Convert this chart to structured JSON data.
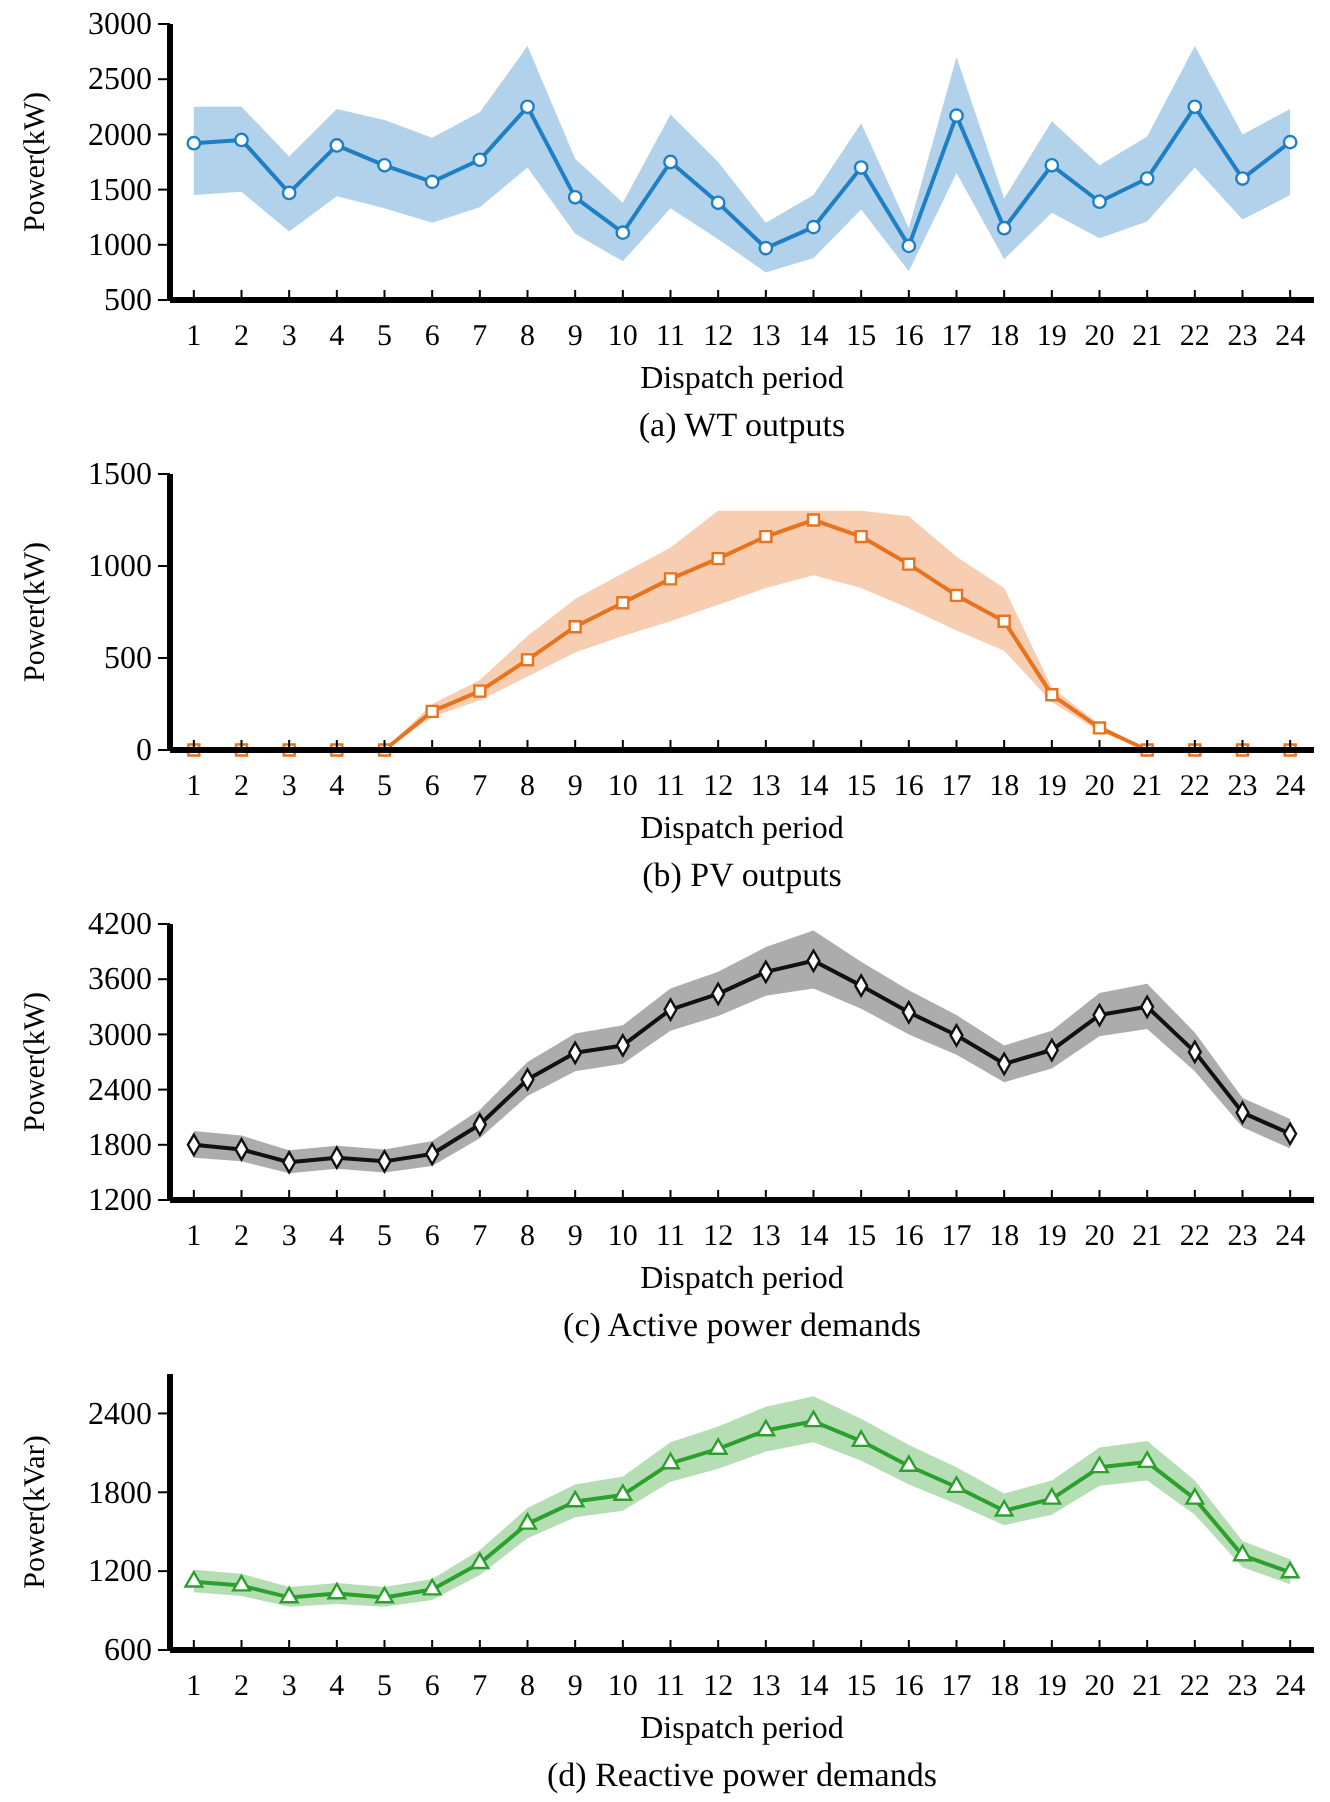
{
  "chart_data": [
    {
      "type": "line",
      "title": "(a) WT outputs",
      "xlabel": "Dispatch period",
      "ylabel": "Power(kW)",
      "x": [
        1,
        2,
        3,
        4,
        5,
        6,
        7,
        8,
        9,
        10,
        11,
        12,
        13,
        14,
        15,
        16,
        17,
        18,
        19,
        20,
        21,
        22,
        23,
        24
      ],
      "xlim": [
        0.5,
        24.5
      ],
      "xticks": [
        1,
        2,
        3,
        4,
        5,
        6,
        7,
        8,
        9,
        10,
        11,
        12,
        13,
        14,
        15,
        16,
        17,
        18,
        19,
        20,
        21,
        22,
        23,
        24
      ],
      "ylim": [
        500,
        3000
      ],
      "yticks": [
        500,
        1000,
        1500,
        2000,
        2500,
        3000
      ],
      "marker": "circle",
      "line_style": "solid",
      "series": [
        {
          "color": "#1f7fc4",
          "values": [
            1920,
            1950,
            1470,
            1900,
            1720,
            1570,
            1770,
            2250,
            1430,
            1110,
            1750,
            1380,
            970,
            1160,
            1700,
            990,
            2170,
            1150,
            1720,
            1390,
            1600,
            2250,
            1600,
            1930
          ],
          "lower": [
            1450,
            1480,
            1120,
            1440,
            1330,
            1200,
            1340,
            1700,
            1100,
            850,
            1330,
            1050,
            750,
            880,
            1320,
            760,
            1650,
            870,
            1290,
            1060,
            1210,
            1700,
            1230,
            1450
          ],
          "upper": [
            2250,
            2250,
            1800,
            2230,
            2130,
            1970,
            2200,
            2800,
            1780,
            1380,
            2180,
            1750,
            1200,
            1450,
            2100,
            1150,
            2700,
            1420,
            2120,
            1720,
            1980,
            2800,
            2000,
            2230
          ]
        }
      ]
    },
    {
      "type": "line",
      "title": "(b) PV outputs",
      "xlabel": "Dispatch period",
      "ylabel": "Power(kW)",
      "x": [
        1,
        2,
        3,
        4,
        5,
        6,
        7,
        8,
        9,
        10,
        11,
        12,
        13,
        14,
        15,
        16,
        17,
        18,
        19,
        20,
        21,
        22,
        23,
        24
      ],
      "xlim": [
        0.5,
        24.5
      ],
      "xticks": [
        1,
        2,
        3,
        4,
        5,
        6,
        7,
        8,
        9,
        10,
        11,
        12,
        13,
        14,
        15,
        16,
        17,
        18,
        19,
        20,
        21,
        22,
        23,
        24
      ],
      "ylim": [
        0,
        1500
      ],
      "yticks": [
        0,
        500,
        1000,
        1500
      ],
      "marker": "square",
      "line_style": "solid",
      "series": [
        {
          "color": "#e8731f",
          "values": [
            0,
            0,
            0,
            0,
            0,
            210,
            320,
            490,
            670,
            800,
            930,
            1040,
            1160,
            1250,
            1160,
            1010,
            840,
            700,
            300,
            120,
            0,
            0,
            0,
            0
          ],
          "lower": [
            0,
            0,
            0,
            0,
            0,
            180,
            270,
            400,
            530,
            620,
            700,
            790,
            880,
            950,
            880,
            770,
            650,
            540,
            260,
            100,
            0,
            0,
            0,
            0
          ],
          "upper": [
            0,
            0,
            0,
            0,
            0,
            250,
            380,
            620,
            820,
            960,
            1100,
            1300,
            1300,
            1300,
            1300,
            1270,
            1050,
            880,
            340,
            140,
            0,
            0,
            0,
            0
          ]
        }
      ]
    },
    {
      "type": "line",
      "title": "(c) Active power demands",
      "xlabel": "Dispatch period",
      "ylabel": "Power(kW)",
      "x": [
        1,
        2,
        3,
        4,
        5,
        6,
        7,
        8,
        9,
        10,
        11,
        12,
        13,
        14,
        15,
        16,
        17,
        18,
        19,
        20,
        21,
        22,
        23,
        24
      ],
      "xlim": [
        0.5,
        24.5
      ],
      "xticks": [
        1,
        2,
        3,
        4,
        5,
        6,
        7,
        8,
        9,
        10,
        11,
        12,
        13,
        14,
        15,
        16,
        17,
        18,
        19,
        20,
        21,
        22,
        23,
        24
      ],
      "ylim": [
        1200,
        4200
      ],
      "yticks": [
        1200,
        1800,
        2400,
        3000,
        3600,
        4200
      ],
      "marker": "diamond",
      "line_style": "solid",
      "series": [
        {
          "color": "#111111",
          "values": [
            1800,
            1750,
            1610,
            1660,
            1620,
            1700,
            2020,
            2510,
            2800,
            2880,
            3270,
            3440,
            3680,
            3800,
            3530,
            3240,
            2990,
            2680,
            2830,
            3210,
            3300,
            2810,
            2150,
            1920
          ],
          "lower": [
            1660,
            1620,
            1490,
            1540,
            1500,
            1570,
            1870,
            2330,
            2600,
            2680,
            3040,
            3200,
            3420,
            3500,
            3280,
            3000,
            2780,
            2480,
            2630,
            2980,
            3060,
            2600,
            1990,
            1760
          ],
          "upper": [
            1950,
            1900,
            1740,
            1790,
            1750,
            1840,
            2180,
            2700,
            3010,
            3100,
            3500,
            3680,
            3950,
            4130,
            3790,
            3480,
            3210,
            2880,
            3040,
            3450,
            3550,
            3020,
            2310,
            2080
          ]
        }
      ]
    },
    {
      "type": "line",
      "title": "(d) Reactive power demands",
      "xlabel": "Dispatch period",
      "ylabel": "Power(kVar)",
      "x": [
        1,
        2,
        3,
        4,
        5,
        6,
        7,
        8,
        9,
        10,
        11,
        12,
        13,
        14,
        15,
        16,
        17,
        18,
        19,
        20,
        21,
        22,
        23,
        24
      ],
      "xlim": [
        0.5,
        24.5
      ],
      "xticks": [
        1,
        2,
        3,
        4,
        5,
        6,
        7,
        8,
        9,
        10,
        11,
        12,
        13,
        14,
        15,
        16,
        17,
        18,
        19,
        20,
        21,
        22,
        23,
        24
      ],
      "ylim": [
        600,
        2700
      ],
      "yticks": [
        600,
        1200,
        1800,
        2400
      ],
      "marker": "triangle",
      "line_style": "solid",
      "series": [
        {
          "color": "#2ca02c",
          "values": [
            1120,
            1090,
            1000,
            1030,
            1000,
            1060,
            1260,
            1560,
            1730,
            1780,
            2020,
            2130,
            2270,
            2340,
            2190,
            2000,
            1840,
            1660,
            1750,
            1990,
            2030,
            1750,
            1320,
            1190
          ],
          "lower": [
            1040,
            1010,
            930,
            950,
            930,
            980,
            1170,
            1450,
            1610,
            1660,
            1880,
            1980,
            2110,
            2180,
            2040,
            1860,
            1710,
            1550,
            1630,
            1850,
            1890,
            1630,
            1230,
            1100
          ],
          "upper": [
            1210,
            1180,
            1080,
            1110,
            1080,
            1140,
            1360,
            1680,
            1860,
            1920,
            2180,
            2300,
            2450,
            2530,
            2360,
            2160,
            1990,
            1790,
            1890,
            2140,
            2190,
            1890,
            1430,
            1290
          ]
        }
      ]
    }
  ]
}
